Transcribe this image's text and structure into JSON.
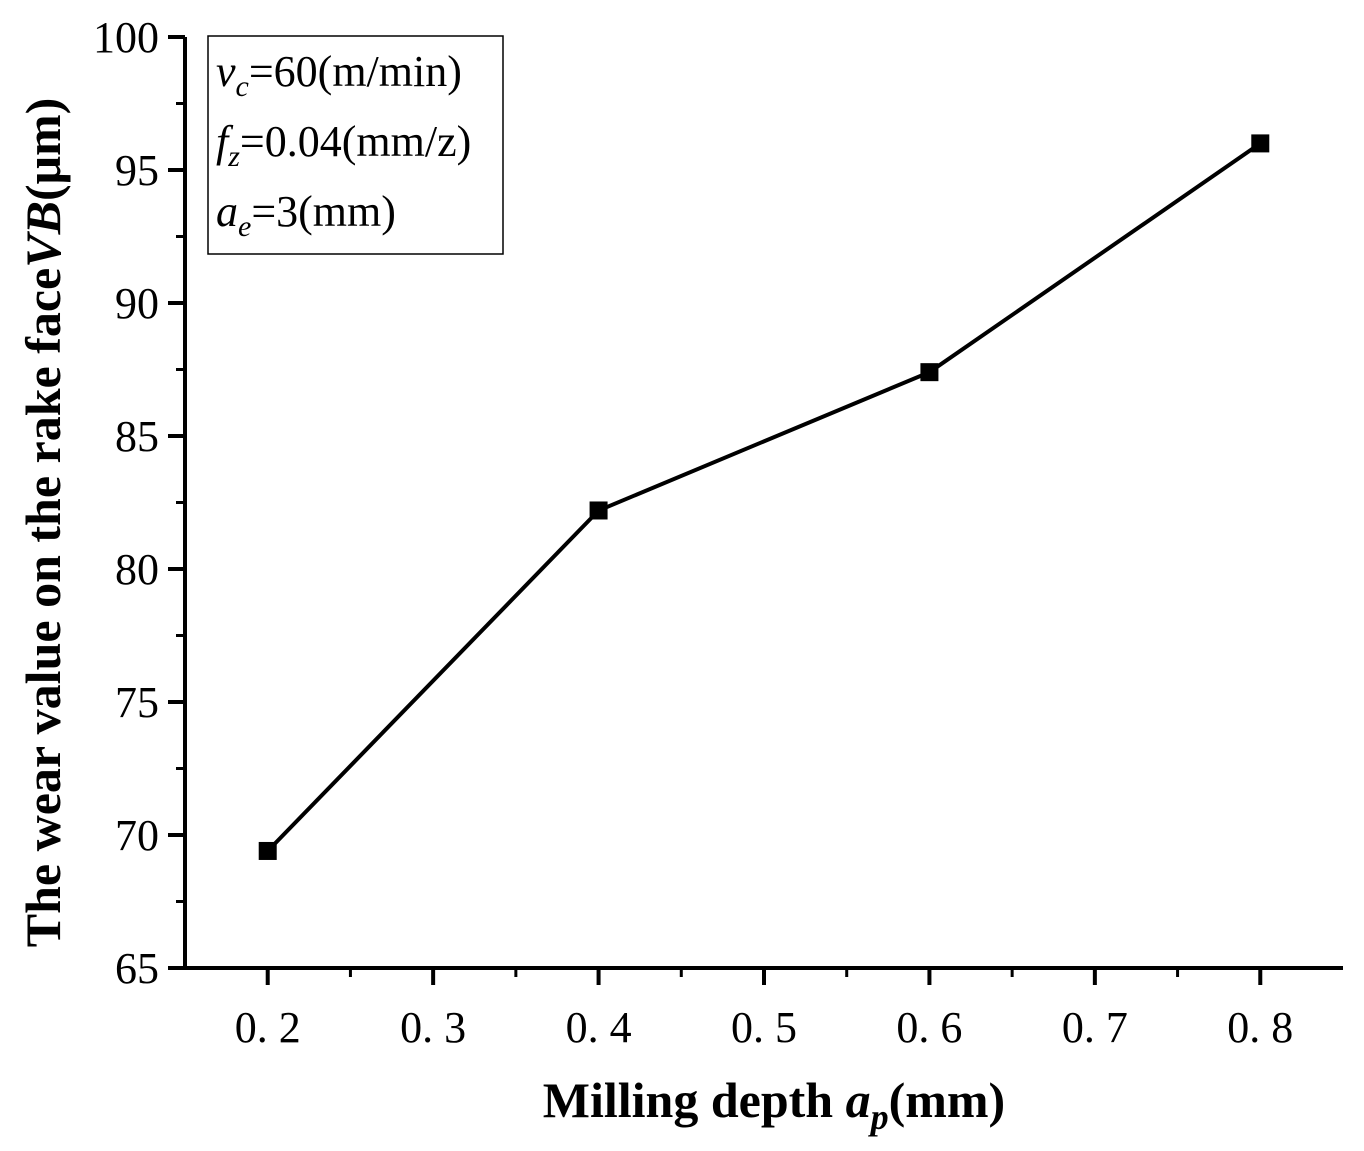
{
  "chart_data": {
    "type": "line",
    "x": [
      0.2,
      0.4,
      0.6,
      0.8
    ],
    "series": [
      {
        "name": "VB",
        "values": [
          69.4,
          82.2,
          87.4,
          96.0
        ]
      }
    ],
    "xlim": [
      0.15,
      0.85
    ],
    "ylim": [
      65,
      100
    ],
    "xticks": [
      "0. 2",
      "0. 3",
      "0. 4",
      "0. 5",
      "0. 6",
      "0. 7",
      "0. 8"
    ],
    "xtick_values": [
      0.2,
      0.3,
      0.4,
      0.5,
      0.6,
      0.7,
      0.8
    ],
    "yticks": [
      "65",
      "70",
      "75",
      "80",
      "85",
      "90",
      "95",
      "100"
    ],
    "ytick_values": [
      65,
      70,
      75,
      80,
      85,
      90,
      95,
      100
    ],
    "xlabel": {
      "main": "Milling depth ",
      "var": "a",
      "sub": "p",
      "unit": "(mm)"
    },
    "ylabel": {
      "main": "The wear value on the rake face",
      "var": "VB",
      "unit": "(μm)"
    },
    "annotations": [
      {
        "var": "v",
        "sub": "c",
        "text": "=60(m/min)"
      },
      {
        "var": "f",
        "sub": "z",
        "text": "=0.04(mm/z)"
      },
      {
        "var": "a",
        "sub": "e",
        "text": "=3(mm)"
      }
    ],
    "annotation_location": "top-left",
    "grid": false
  }
}
